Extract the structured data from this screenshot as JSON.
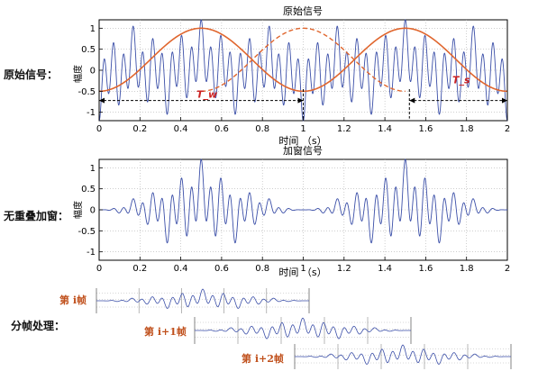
{
  "side_labels": {
    "original": "原始信号：",
    "windowed": "无重叠加窗：",
    "framing": "分帧处理："
  },
  "frame_labels": [
    "第 i帧",
    "第 i+1帧",
    "第 i+2帧"
  ],
  "colors": {
    "signal": "#3b4fa8",
    "window": "#e0662e",
    "annotation": "#cc2222",
    "axis": "#000000",
    "grid": "#b0b0b0"
  },
  "chart_data": [
    {
      "type": "line",
      "title": "原始信号",
      "xlabel": "时间 （s）",
      "ylabel": "幅度",
      "xlim": [
        0,
        2
      ],
      "ylim": [
        -1.2,
        1.2
      ],
      "xticks": [
        "0",
        "0.2",
        "0.4",
        "0.6",
        "0.8",
        "1",
        "1.2",
        "1.4",
        "1.6",
        "1.8",
        "2"
      ],
      "yticks": [
        "1",
        "0.5",
        "0",
        "-0.5",
        "-1"
      ],
      "grid": true,
      "annotations": [
        "T_w",
        "T_s"
      ],
      "series": [
        {
          "style": "solid",
          "description_key": "signal",
          "period_s": 1,
          "components": [
            {
              "freq_hz": 21,
              "amp": 0.6
            },
            {
              "freq_hz": 9,
              "amp": 0.3
            },
            {
              "freq_hz": 3,
              "amp": 0.2
            },
            {
              "freq_hz": 1,
              "amp": 0.1
            }
          ]
        },
        {
          "style": "solid",
          "description_key": "window_a",
          "shape": "raised-sine",
          "period_s": 1,
          "peak_x": 0.5,
          "min": -0.5,
          "max": 1
        },
        {
          "style": "dashed",
          "description_key": "window_b",
          "shape": "raised-sine",
          "period_s": 1,
          "peak_x": 1.0,
          "min": -0.5,
          "max": 1
        }
      ]
    },
    {
      "type": "line",
      "title": "加窗信号",
      "xlabel": "时间 （s）",
      "ylabel": "幅度",
      "xlim": [
        0,
        2
      ],
      "ylim": [
        -1.2,
        1.2
      ],
      "xticks": [
        "0",
        "0.2",
        "0.4",
        "0.6",
        "0.8",
        "1",
        "1.2",
        "1.4",
        "1.6",
        "1.8",
        "2"
      ],
      "yticks": [
        "1",
        "0.5",
        "0",
        "-0.5",
        "-1"
      ],
      "grid": true,
      "series": [
        {
          "style": "solid",
          "description_key": "signal_times_window"
        }
      ]
    }
  ]
}
